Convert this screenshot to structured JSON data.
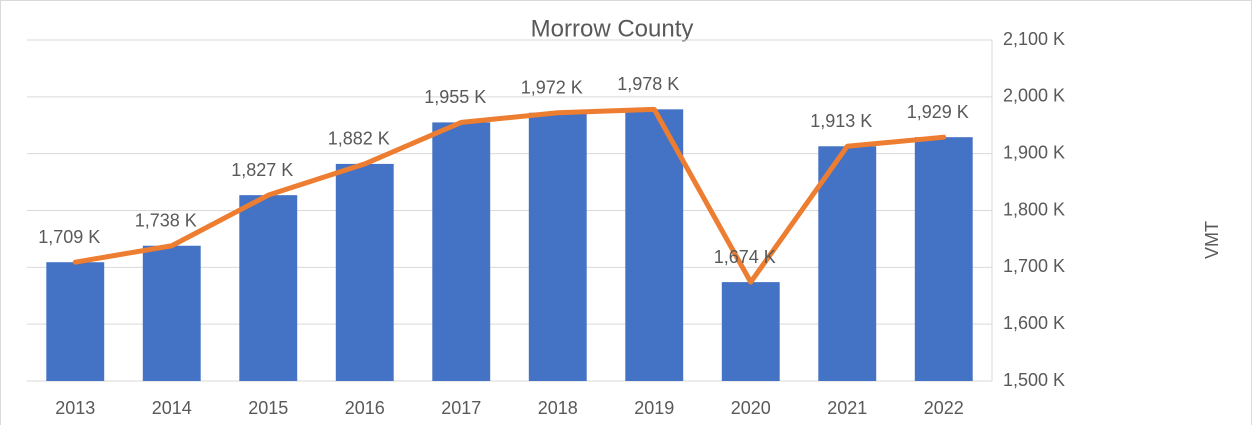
{
  "chart_data": {
    "type": "combo",
    "title": "Morrow County",
    "y_label": "VMT",
    "categories": [
      "2013",
      "2014",
      "2015",
      "2016",
      "2017",
      "2018",
      "2019",
      "2020",
      "2021",
      "2022"
    ],
    "series": [
      {
        "type": "bar",
        "color": "#4472c4",
        "values": [
          1709,
          1738,
          1827,
          1882,
          1955,
          1972,
          1978,
          1674,
          1913,
          1929
        ]
      },
      {
        "type": "line",
        "color": "#ed7d31",
        "values": [
          1709,
          1738,
          1827,
          1882,
          1955,
          1972,
          1978,
          1674,
          1913,
          1929
        ],
        "value_labels": [
          "1,709 K",
          "1,738 K",
          "1,827 K",
          "1,882 K",
          "1,955 K",
          "1,972 K",
          "1,978 K",
          "1,674 K",
          "1,913 K",
          "1,929 K"
        ]
      }
    ],
    "ylim": [
      1500,
      2100
    ],
    "yticks": [
      {
        "value": 1500,
        "label": "1,500 K"
      },
      {
        "value": 1600,
        "label": "1,600 K"
      },
      {
        "value": 1700,
        "label": "1,700 K"
      },
      {
        "value": 1800,
        "label": "1,800 K"
      },
      {
        "value": 1900,
        "label": "1,900 K"
      },
      {
        "value": 2000,
        "label": "2,000 K"
      },
      {
        "value": 2100,
        "label": "2,100 K"
      }
    ],
    "grid": true
  }
}
